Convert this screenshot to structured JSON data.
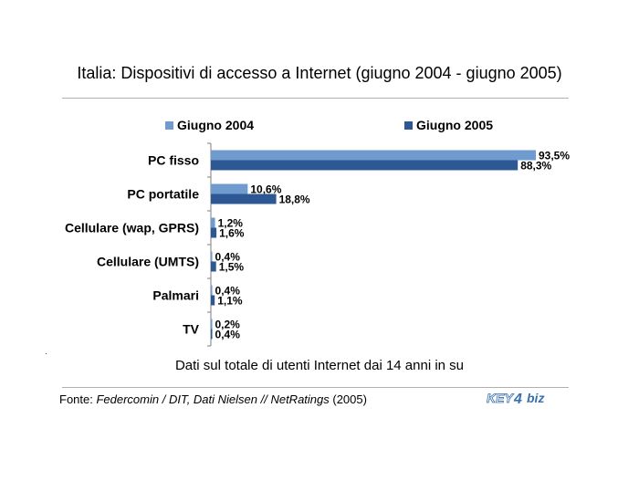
{
  "colors": {
    "series_2004": "#6f9bcf",
    "series_2005": "#2e5893",
    "axis": "#7f7f7f",
    "rule": "#b0b0b0",
    "logo": "#3a6fb0"
  },
  "source": {
    "prefix": "Fonte: ",
    "italic": "Federcomin / DIT, Dati Nielsen // NetRatings",
    "suffix": " (2005)"
  },
  "logo": {
    "text_left": "KEY",
    "text_mid": "4",
    "text_right": "biz"
  },
  "chart_data": {
    "type": "bar",
    "orientation": "horizontal",
    "title": "Italia: Dispositivi di accesso a Internet (giugno 2004 - giugno 2005)",
    "note": "Dati sul totale di utenti Internet dai 14 anni in su",
    "categories": [
      "PC fisso",
      "PC portatile",
      "Cellulare (wap, GPRS)",
      "Cellulare (UMTS)",
      "Palmari",
      "TV"
    ],
    "series": [
      {
        "name": "Giugno 2004",
        "values": [
          93.5,
          10.6,
          1.2,
          0.4,
          0.4,
          0.2
        ],
        "labels": [
          "93,5%",
          "10,6%",
          "1,2%",
          "0,4%",
          "0,4%",
          "0,2%"
        ]
      },
      {
        "name": "Giugno 2005",
        "values": [
          88.3,
          18.8,
          1.6,
          1.5,
          1.1,
          0.4
        ],
        "labels": [
          "88,3%",
          "18,8%",
          "1,6%",
          "1,5%",
          "1,1%",
          "0,4%"
        ]
      }
    ],
    "xlim": [
      0,
      93.5
    ],
    "grid": false,
    "legend": "top"
  }
}
